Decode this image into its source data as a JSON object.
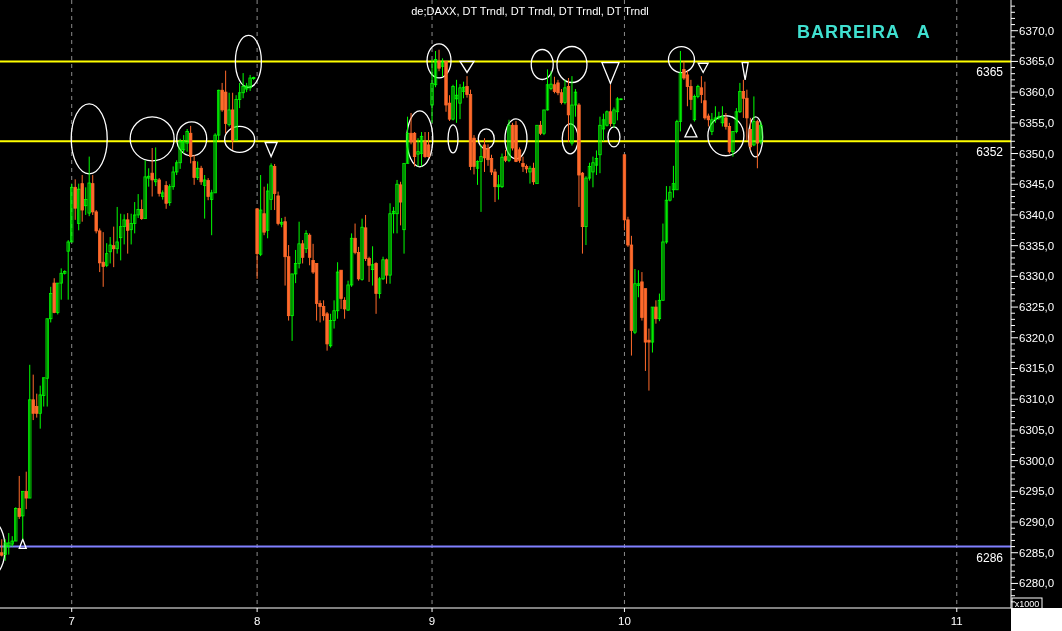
{
  "chart_data": {
    "type": "candlestick",
    "title": "de;DAXX, DT Trndl, DT Trndl, DT Trndl, DT Trndl",
    "annotations": [
      "BARREIRA   A",
      "x1000"
    ],
    "categories": [
      null,
      null,
      null,
      null,
      null,
      null,
      null,
      null,
      null,
      null,
      null,
      null,
      null,
      null,
      null,
      null,
      null,
      null,
      null,
      null,
      "7",
      null,
      null,
      null,
      null,
      null,
      null,
      null,
      null,
      null,
      null,
      null,
      null,
      null,
      null,
      null,
      null,
      null,
      null,
      null,
      null,
      null,
      null,
      null,
      null,
      null,
      null,
      null,
      null,
      null,
      null,
      null,
      null,
      null,
      null,
      null,
      null,
      null,
      null,
      null,
      null,
      null,
      null,
      null,
      null,
      null,
      null,
      null,
      null,
      null,
      null,
      null,
      null,
      "8",
      null,
      null,
      null,
      null,
      null,
      null,
      null,
      null,
      null,
      null,
      null,
      null,
      null,
      null,
      null,
      null,
      null,
      null,
      null,
      null,
      null,
      null,
      null,
      null,
      null,
      null,
      null,
      null,
      null,
      null,
      null,
      null,
      null,
      null,
      null,
      null,
      null,
      null,
      null,
      null,
      null,
      null,
      null,
      null,
      null,
      null,
      null,
      null,
      null,
      "9",
      null,
      null,
      null,
      null,
      null,
      null,
      null,
      null,
      null,
      null,
      null,
      null,
      null,
      null,
      null,
      null,
      null,
      null,
      null,
      null,
      null,
      null,
      null,
      null,
      null,
      null,
      null,
      null,
      null,
      null,
      null,
      null,
      null,
      null,
      null,
      null,
      null,
      null,
      null,
      null,
      null,
      null,
      null,
      null,
      null,
      null,
      null,
      null,
      null,
      null,
      null,
      null,
      null,
      null,
      "10",
      null,
      null,
      null,
      null,
      null,
      null,
      null,
      null,
      null,
      null,
      null,
      null,
      null,
      null,
      null,
      null,
      null,
      null,
      null,
      null,
      null,
      null,
      null,
      null,
      null,
      null,
      null,
      null,
      null,
      null,
      null,
      null,
      null,
      null,
      null,
      null,
      null,
      null,
      null,
      null,
      null,
      null,
      null,
      null,
      null,
      null,
      null,
      null,
      null,
      null,
      null,
      null,
      null,
      null,
      null,
      null,
      null,
      null,
      null,
      null,
      null,
      null,
      null,
      null,
      null,
      null,
      null,
      null,
      null,
      null,
      null,
      null,
      null,
      null,
      null,
      null,
      null,
      null,
      null,
      null,
      null,
      null,
      null,
      null,
      null,
      null,
      null,
      null,
      null,
      null,
      null,
      null,
      null,
      null,
      "11",
      null,
      null,
      null,
      null,
      null,
      null,
      null,
      null,
      null,
      null,
      null,
      null,
      null,
      null,
      null
    ],
    "ohlc": [
      [
        6285.0,
        6287.2,
        6284.4,
        6284.6
      ],
      [
        6284.7,
        6287.2,
        6283.7,
        6286.6
      ],
      [
        6286.0,
        6288.2,
        6284.7,
        6286.6
      ],
      [
        6286.4,
        6287.7,
        6286.0,
        6286.9
      ],
      [
        6286.9,
        6292.4,
        6286.9,
        6292.2
      ],
      [
        6292.2,
        6297.5,
        6290.5,
        6290.9
      ],
      [
        6291.0,
        6295.0,
        6287.2,
        6295.0
      ],
      [
        6295.0,
        6298.2,
        6292.1,
        6293.9
      ],
      [
        6293.9,
        6315.6,
        6293.9,
        6309.9
      ],
      [
        6309.9,
        6314.0,
        6306.6,
        6307.7
      ],
      [
        6308.8,
        6310.9,
        6307.0,
        6307.7
      ],
      [
        6307.7,
        6312.2,
        6305.2,
        6310.7
      ],
      [
        6310.6,
        6313.5,
        6308.8,
        6313.5
      ],
      [
        6313.4,
        6323.1,
        6308.8,
        6323.1
      ],
      [
        6323.1,
        6328.3,
        6322.5,
        6327.2
      ],
      [
        6328.9,
        6329.7,
        6324.0,
        6324.1
      ],
      [
        6324.1,
        6328.9,
        6323.8,
        6328.9
      ],
      [
        6328.9,
        6331.3,
        6326.2,
        6330.5
      ],
      [
        6330.5,
        6331.0,
        6330.3,
        6330.8
      ],
      [
        6334.1,
        6335.9,
        6326.2,
        6335.6
      ],
      [
        6335.6,
        6345.1,
        6335.6,
        6344.5
      ],
      [
        6344.5,
        6345.8,
        6339.2,
        6341.1
      ],
      [
        6338.6,
        6345.1,
        6337.5,
        6344.2
      ],
      [
        6345.1,
        6346.5,
        6338.9,
        6340.8
      ],
      [
        6341.5,
        6344.5,
        6340.0,
        6342.5
      ],
      [
        6340.3,
        6349.5,
        6339.8,
        6345.2
      ],
      [
        6345.1,
        6346.5,
        6340.0,
        6340.5
      ],
      [
        6340.5,
        6340.8,
        6337.0,
        6337.4
      ],
      [
        6337.4,
        6337.8,
        6330.7,
        6332.2
      ],
      [
        6332.3,
        6337.2,
        6328.3,
        6331.6
      ],
      [
        6331.8,
        6335.4,
        6331.5,
        6333.7
      ],
      [
        6334.0,
        6336.4,
        6332.1,
        6335.1
      ],
      [
        6335.0,
        6338.1,
        6331.5,
        6334.5
      ],
      [
        6334.5,
        6341.3,
        6333.7,
        6335.6
      ],
      [
        6336.3,
        6340.2,
        6332.6,
        6338.1
      ],
      [
        6338.1,
        6340.1,
        6335.2,
        6339.2
      ],
      [
        6339.2,
        6340.3,
        6333.7,
        6337.5
      ],
      [
        6337.6,
        6340.2,
        6335.2,
        6338.6
      ],
      [
        6338.6,
        6342.1,
        6337.0,
        6340.0
      ],
      [
        6340.0,
        6343.4,
        6339.5,
        6340.9
      ],
      [
        6340.9,
        6342.5,
        6339.2,
        6339.4
      ],
      [
        6339.4,
        6348.9,
        6339.4,
        6346.2
      ],
      [
        6346.0,
        6347.6,
        6344.6,
        6346.3
      ],
      [
        6346.8,
        6350.9,
        6343.0,
        6345.7
      ],
      [
        6345.4,
        6351.0,
        6344.7,
        6345.8
      ],
      [
        6345.7,
        6346.0,
        6343.0,
        6343.5
      ],
      [
        6343.0,
        6344.0,
        6342.5,
        6343.6
      ],
      [
        6344.8,
        6345.5,
        6341.0,
        6341.9
      ],
      [
        6342.0,
        6345.0,
        6341.5,
        6344.6
      ],
      [
        6344.6,
        6347.9,
        6344.1,
        6347.0
      ],
      [
        6347.0,
        6348.9,
        6346.5,
        6348.5
      ],
      [
        6348.5,
        6352.4,
        6347.5,
        6352.0
      ],
      [
        6350.6,
        6353.0,
        6350.0,
        6352.0
      ],
      [
        6351.7,
        6354.0,
        6350.3,
        6353.6
      ],
      [
        6353.3,
        6354.5,
        6348.4,
        6349.5
      ],
      [
        6348.7,
        6349.8,
        6344.9,
        6346.1
      ],
      [
        6346.1,
        6348.7,
        6345.7,
        6347.6
      ],
      [
        6347.6,
        6348.0,
        6344.9,
        6345.4
      ],
      [
        6344.8,
        6346.5,
        6339.4,
        6345.7
      ],
      [
        6345.6,
        6346.0,
        6342.4,
        6343.0
      ],
      [
        6342.5,
        6344.1,
        6336.7,
        6343.6
      ],
      [
        6343.6,
        6353.3,
        6343.6,
        6353.0
      ],
      [
        6353.0,
        6360.4,
        6352.2,
        6360.3
      ],
      [
        6360.3,
        6361.5,
        6356.8,
        6357.1
      ],
      [
        6360.0,
        6363.5,
        6353.3,
        6354.9
      ],
      [
        6354.7,
        6359.9,
        6354.4,
        6357.1
      ],
      [
        6357.1,
        6359.9,
        6350.6,
        6352.2
      ],
      [
        6352.2,
        6359.5,
        6352.2,
        6358.8
      ],
      [
        6358.8,
        6361.5,
        6357.4,
        6359.9
      ],
      [
        6359.9,
        6363.1,
        6359.0,
        6360.9
      ],
      [
        6360.5,
        6361.5,
        6360.0,
        6361.0
      ],
      [
        6360.7,
        6362.8,
        6360.2,
        6362.3
      ],
      [
        6362.2,
        6362.5,
        6362.0,
        6362.4
      ],
      [
        6341.0,
        6341.0,
        6329.6,
        6333.7
      ],
      [
        6333.6,
        6346.5,
        6333.3,
        6340.8
      ],
      [
        6340.2,
        6344.6,
        6336.7,
        6337.2
      ],
      [
        6337.5,
        6345.1,
        6336.2,
        6343.9
      ],
      [
        6342.5,
        6348.4,
        6340.8,
        6348.0
      ],
      [
        6347.9,
        6348.3,
        6340.8,
        6343.5
      ],
      [
        6343.1,
        6343.8,
        6338.3,
        6338.6
      ],
      [
        6338.5,
        6339.5,
        6338.0,
        6338.8
      ],
      [
        6338.9,
        6339.7,
        6328.5,
        6333.2
      ],
      [
        6333.2,
        6335.1,
        6322.8,
        6323.6
      ],
      [
        6323.6,
        6330.4,
        6319.5,
        6330.4
      ],
      [
        6330.4,
        6334.3,
        6328.9,
        6332.1
      ],
      [
        6332.1,
        6338.9,
        6331.3,
        6335.3
      ],
      [
        6335.3,
        6335.9,
        6332.1,
        6333.1
      ],
      [
        6334.5,
        6337.5,
        6333.8,
        6337.0
      ],
      [
        6336.7,
        6337.0,
        6331.8,
        6333.1
      ],
      [
        6332.6,
        6335.3,
        6330.4,
        6330.7
      ],
      [
        6332.1,
        6332.1,
        6322.8,
        6325.6
      ],
      [
        6325.6,
        6326.1,
        6322.5,
        6325.1
      ],
      [
        6325.1,
        6326.1,
        6322.8,
        6323.6
      ],
      [
        6323.9,
        6324.2,
        6317.9,
        6319.0
      ],
      [
        6318.7,
        6323.9,
        6318.4,
        6322.8
      ],
      [
        6322.8,
        6326.1,
        6321.5,
        6324.4
      ],
      [
        6324.4,
        6332.3,
        6323.1,
        6330.7
      ],
      [
        6331.0,
        6331.0,
        6324.7,
        6326.4
      ],
      [
        6326.1,
        6326.6,
        6323.1,
        6324.7
      ],
      [
        6324.5,
        6329.3,
        6324.4,
        6328.6
      ],
      [
        6328.6,
        6337.0,
        6328.3,
        6336.2
      ],
      [
        6336.2,
        6338.6,
        6333.6,
        6333.9
      ],
      [
        6333.9,
        6334.8,
        6329.3,
        6329.6
      ],
      [
        6329.5,
        6339.4,
        6329.3,
        6338.0
      ],
      [
        6337.9,
        6340.0,
        6332.5,
        6332.9
      ],
      [
        6332.9,
        6333.2,
        6329.1,
        6331.8
      ],
      [
        6331.1,
        6334.9,
        6328.5,
        6331.9
      ],
      [
        6332.1,
        6332.3,
        6323.9,
        6327.2
      ],
      [
        6327.2,
        6329.9,
        6326.4,
        6329.6
      ],
      [
        6329.6,
        6333.2,
        6329.4,
        6332.7
      ],
      [
        6332.7,
        6332.9,
        6328.8,
        6330.2
      ],
      [
        6330.2,
        6341.9,
        6328.8,
        6340.2
      ],
      [
        6340.2,
        6341.3,
        6337.0,
        6340.6
      ],
      [
        6340.2,
        6345.7,
        6337.0,
        6345.0
      ],
      [
        6344.9,
        6345.4,
        6338.3,
        6342.1
      ],
      [
        6337.6,
        6348.4,
        6333.7,
        6348.4
      ],
      [
        6348.4,
        6356.0,
        6348.4,
        6353.3
      ],
      [
        6353.3,
        6356.6,
        6351.5,
        6351.9
      ],
      [
        6353.3,
        6353.5,
        6347.9,
        6349.5
      ],
      [
        6349.9,
        6352.5,
        6347.9,
        6350.3
      ],
      [
        6350.0,
        6353.5,
        6347.9,
        6352.8
      ],
      [
        6351.9,
        6353.5,
        6349.3,
        6349.5
      ],
      [
        6351.4,
        6353.5,
        6349.3,
        6349.5
      ],
      [
        6357.9,
        6365.3,
        6355.0,
        6361.4
      ],
      [
        6361.2,
        6366.7,
        6360.8,
        6365.3
      ],
      [
        6365.0,
        6366.9,
        6363.4,
        6363.9
      ],
      [
        6364.2,
        6365.5,
        6362.5,
        6364.9
      ],
      [
        6365.0,
        6365.0,
        6356.8,
        6357.9
      ],
      [
        6358.2,
        6359.5,
        6355.3,
        6355.6
      ],
      [
        6355.6,
        6361.2,
        6355.4,
        6360.9
      ],
      [
        6358.9,
        6362.0,
        6355.0,
        6359.5
      ],
      [
        6358.2,
        6361.3,
        6355.6,
        6360.7
      ],
      [
        6360.1,
        6361.7,
        6359.0,
        6360.8
      ],
      [
        6360.9,
        6362.6,
        6359.1,
        6359.6
      ],
      [
        6359.6,
        6360.4,
        6347.3,
        6347.9
      ],
      [
        6352.5,
        6353.0,
        6346.6,
        6347.9
      ],
      [
        6347.6,
        6348.9,
        6344.9,
        6348.7
      ],
      [
        6348.7,
        6351.4,
        6340.5,
        6349.5
      ],
      [
        6351.4,
        6352.5,
        6347.0,
        6349.3
      ],
      [
        6350.8,
        6351.5,
        6348.0,
        6349.0
      ],
      [
        6349.2,
        6349.8,
        6346.5,
        6347.0
      ],
      [
        6347.0,
        6347.5,
        6342.1,
        6344.6
      ],
      [
        6344.6,
        6346.5,
        6342.5,
        6344.9
      ],
      [
        6344.6,
        6350.0,
        6344.4,
        6349.4
      ],
      [
        6349.5,
        6350.6,
        6348.6,
        6348.9
      ],
      [
        6348.9,
        6355.5,
        6348.6,
        6354.6
      ],
      [
        6354.6,
        6355.0,
        6350.5,
        6350.9
      ],
      [
        6354.6,
        6355.3,
        6348.6,
        6348.7
      ],
      [
        6350.6,
        6351.0,
        6348.5,
        6348.9
      ],
      [
        6348.4,
        6349.5,
        6347.0,
        6347.9
      ],
      [
        6347.9,
        6348.2,
        6346.8,
        6347.5
      ],
      [
        6347.0,
        6348.0,
        6345.1,
        6347.6
      ],
      [
        6347.6,
        6348.5,
        6344.9,
        6345.4
      ],
      [
        6345.1,
        6354.6,
        6345.1,
        6354.6
      ],
      [
        6354.6,
        6355.3,
        6353.0,
        6353.3
      ],
      [
        6353.3,
        6357.1,
        6353.0,
        6357.1
      ],
      [
        6357.1,
        6363.7,
        6357.0,
        6361.2
      ],
      [
        6360.6,
        6363.4,
        6360.3,
        6361.3
      ],
      [
        6361.2,
        6362.5,
        6359.8,
        6360.1
      ],
      [
        6361.5,
        6362.0,
        6359.5,
        6359.9
      ],
      [
        6359.9,
        6360.5,
        6358.0,
        6358.3
      ],
      [
        6358.3,
        6362.0,
        6358.0,
        6360.7
      ],
      [
        6360.9,
        6362.3,
        6351.9,
        6356.3
      ],
      [
        6351.7,
        6362.6,
        6351.3,
        6357.9
      ],
      [
        6357.9,
        6360.5,
        6356.0,
        6360.0
      ],
      [
        6357.9,
        6358.2,
        6341.3,
        6346.5
      ],
      [
        6346.8,
        6347.0,
        6333.7,
        6338.1
      ],
      [
        6338.1,
        6346.3,
        6335.1,
        6346.0
      ],
      [
        6346.0,
        6348.5,
        6345.6,
        6347.9
      ],
      [
        6347.0,
        6349.5,
        6344.5,
        6348.5
      ],
      [
        6348.1,
        6350.5,
        6346.5,
        6349.2
      ],
      [
        6349.8,
        6356.0,
        6346.8,
        6354.6
      ],
      [
        6354.0,
        6356.5,
        6352.0,
        6355.5
      ],
      [
        6354.6,
        6357.0,
        6354.4,
        6356.8
      ],
      [
        6356.8,
        6361.2,
        6354.4,
        6354.9
      ],
      [
        6354.9,
        6357.5,
        6354.2,
        6357.1
      ],
      [
        6356.8,
        6359.2,
        6355.4,
        6358.9
      ],
      [
        6358.8,
        6359.0,
        6358.7,
        6358.9
      ],
      [
        6349.8,
        6349.8,
        6337.5,
        6339.2
      ],
      [
        6339.2,
        6339.7,
        6334.8,
        6335.1
      ],
      [
        6335.1,
        6336.6,
        6317.1,
        6321.2
      ],
      [
        6320.9,
        6331.2,
        6320.6,
        6328.8
      ],
      [
        6328.5,
        6331.0,
        6326.6,
        6328.8
      ],
      [
        6329.1,
        6330.7,
        6322.8,
        6323.3
      ],
      [
        6328.0,
        6328.0,
        6314.6,
        6319.3
      ],
      [
        6319.6,
        6321.5,
        6311.4,
        6319.3
      ],
      [
        6319.3,
        6325.0,
        6317.6,
        6325.0
      ],
      [
        6325.0,
        6326.1,
        6322.3,
        6323.1
      ],
      [
        6323.1,
        6327.2,
        6322.7,
        6326.1
      ],
      [
        6326.1,
        6338.6,
        6326.1,
        6335.6
      ],
      [
        6335.6,
        6344.7,
        6335.3,
        6342.4
      ],
      [
        6342.4,
        6344.7,
        6342.2,
        6343.7
      ],
      [
        6344.1,
        6348.0,
        6342.8,
        6345.1
      ],
      [
        6344.1,
        6355.5,
        6344.1,
        6355.2
      ],
      [
        6355.2,
        6366.7,
        6353.6,
        6363.1
      ],
      [
        6363.7,
        6365.0,
        6362.0,
        6362.3
      ],
      [
        6362.8,
        6363.5,
        6357.7,
        6360.9
      ],
      [
        6360.9,
        6362.0,
        6357.1,
        6358.8
      ],
      [
        6355.5,
        6359.6,
        6355.2,
        6359.3
      ],
      [
        6359.3,
        6361.2,
        6359.0,
        6360.9
      ],
      [
        6360.7,
        6362.6,
        6358.2,
        6359.6
      ],
      [
        6358.6,
        6361.7,
        6355.5,
        6355.8
      ],
      [
        6356.1,
        6356.5,
        6354.4,
        6355.5
      ],
      [
        6353.6,
        6356.6,
        6353.0,
        6355.5
      ],
      [
        6355.5,
        6357.7,
        6355.0,
        6355.8
      ],
      [
        6355.8,
        6356.8,
        6355.5,
        6356.0
      ],
      [
        6355.0,
        6357.7,
        6354.4,
        6356.0
      ],
      [
        6355.8,
        6356.6,
        6353.9,
        6354.4
      ],
      [
        6354.4,
        6355.0,
        6350.0,
        6350.3
      ],
      [
        6350.3,
        6353.6,
        6349.5,
        6353.6
      ],
      [
        6353.6,
        6357.4,
        6353.3,
        6356.8
      ],
      [
        6356.8,
        6361.5,
        6356.6,
        6360.1
      ],
      [
        6360.1,
        6362.0,
        6355.8,
        6359.0
      ],
      [
        6359.0,
        6360.4,
        6352.2,
        6355.8
      ],
      [
        6353.9,
        6355.8,
        6350.5,
        6351.1
      ],
      [
        6351.4,
        6359.3,
        6351.2,
        6355.2
      ],
      [
        6355.2,
        6355.5,
        6347.6,
        6351.7
      ],
      [
        6351.9,
        6355.2,
        6351.5,
        6354.6
      ],
      null,
      null,
      null,
      null,
      null,
      null,
      null,
      null,
      null,
      null,
      null,
      null,
      null,
      null,
      null,
      null,
      null,
      null,
      null,
      null,
      null,
      null,
      null,
      null,
      null,
      null,
      null,
      null,
      null,
      null,
      null,
      null,
      null,
      null,
      null,
      null,
      null,
      null,
      null,
      null,
      null,
      null,
      null,
      null,
      null,
      null,
      null,
      null,
      null,
      null,
      null,
      null,
      null,
      null,
      null,
      null,
      null,
      null,
      null,
      null,
      null,
      null,
      null,
      null,
      null,
      null,
      null,
      null,
      null,
      null,
      null
    ],
    "colors": [
      "#ff6a2b",
      "#00ff00",
      "#00ff00",
      "#00ff00",
      "#00ff00",
      "#ff6a2b",
      "#00ff00",
      "#ff6a2b",
      "#00ff00",
      "#ff6a2b",
      "#ff6a2b",
      "#00ff00",
      "#00ff00",
      "#00ff00",
      "#00ff00",
      "#ff6a2b",
      "#00ff00",
      "#00ff00",
      "#00ff00",
      "#00ff00",
      "#00ff00",
      "#ff6a2b",
      "#00ff00",
      "#ff6a2b",
      "#00ff00",
      "#00ff00",
      "#ff6a2b",
      "#ff6a2b",
      "#ff6a2b",
      "#ff6a2b",
      "#00ff00",
      "#00ff00",
      "#ff6a2b",
      "#00ff00",
      "#00ff00",
      "#00ff00",
      "#ff6a2b",
      "#00ff00",
      "#00ff00",
      "#00ff00",
      "#ff6a2b",
      "#00ff00",
      "#00ff00",
      "#ff6a2b",
      "#00ff00",
      "#ff6a2b",
      "#00ff00",
      "#ff6a2b",
      "#00ff00",
      "#00ff00",
      "#00ff00",
      "#00ff00",
      "#00ff00",
      "#00ff00",
      "#ff6a2b",
      "#ff6a2b",
      "#00ff00",
      "#ff6a2b",
      "#00ff00",
      "#ff6a2b",
      "#00ff00",
      "#00ff00",
      "#00ff00",
      "#ff6a2b",
      "#ff6a2b",
      "#00ff00",
      "#ff6a2b",
      "#00ff00",
      "#00ff00",
      "#00ff00",
      "#00ff00",
      "#00ff00",
      "#00ff00",
      "#ff6a2b",
      "#00ff00",
      "#ff6a2b",
      "#00ff00",
      "#00ff00",
      "#ff6a2b",
      "#ff6a2b",
      "#00ff00",
      "#ff6a2b",
      "#ff6a2b",
      "#00ff00",
      "#00ff00",
      "#00ff00",
      "#ff6a2b",
      "#00ff00",
      "#ff6a2b",
      "#ff6a2b",
      "#ff6a2b",
      "#ff6a2b",
      "#ff6a2b",
      "#ff6a2b",
      "#00ff00",
      "#00ff00",
      "#00ff00",
      "#ff6a2b",
      "#ff6a2b",
      "#00ff00",
      "#00ff00",
      "#ff6a2b",
      "#ff6a2b",
      "#00ff00",
      "#ff6a2b",
      "#ff6a2b",
      "#00ff00",
      "#ff6a2b",
      "#00ff00",
      "#00ff00",
      "#ff6a2b",
      "#00ff00",
      "#00ff00",
      "#00ff00",
      "#ff6a2b",
      "#00ff00",
      "#00ff00",
      "#ff6a2b",
      "#ff6a2b",
      "#00ff00",
      "#00ff00",
      "#ff6a2b",
      "#ff6a2b",
      "#00ff00",
      "#00ff00",
      "#ff6a2b",
      "#00ff00",
      "#ff6a2b",
      "#ff6a2b",
      "#00ff00",
      "#00ff00",
      "#00ff00",
      "#00ff00",
      "#ff6a2b",
      "#ff6a2b",
      "#ff6a2b",
      "#00ff00",
      "#00ff00",
      "#ff6a2b",
      "#ff6a2b",
      "#ff6a2b",
      "#ff6a2b",
      "#00ff00",
      "#00ff00",
      "#ff6a2b",
      "#00ff00",
      "#ff6a2b",
      "#ff6a2b",
      "#ff6a2b",
      "#ff6a2b",
      "#ff6a2b",
      "#00ff00",
      "#ff6a2b",
      "#00ff00",
      "#ff6a2b",
      "#00ff00",
      "#00ff00",
      "#00ff00",
      "#ff6a2b",
      "#ff6a2b",
      "#ff6a2b",
      "#00ff00",
      "#ff6a2b",
      "#00ff00",
      "#00ff00",
      "#ff6a2b",
      "#ff6a2b",
      "#00ff00",
      "#00ff00",
      "#00ff00",
      "#00ff00",
      "#00ff00",
      "#00ff00",
      "#00ff00",
      "#ff6a2b",
      "#00ff00",
      "#00ff00",
      "#00ff00",
      "#ff6a2b",
      "#ff6a2b",
      "#ff6a2b",
      "#00ff00",
      "#00ff00",
      "#ff6a2b",
      "#ff6a2b",
      "#ff6a2b",
      "#00ff00",
      "#ff6a2b",
      "#00ff00",
      "#00ff00",
      "#00ff00",
      "#00ff00",
      "#00ff00",
      "#00ff00",
      "#00ff00",
      "#ff6a2b",
      "#ff6a2b",
      "#ff6a2b",
      "#00ff00",
      "#00ff00",
      "#ff6a2b",
      "#ff6a2b",
      "#ff6a2b",
      "#00ff00",
      "#00ff00",
      "#00ff00",
      "#00ff00",
      "#ff6a2b",
      "#ff6a2b",
      "#00ff00",
      "#00ff00",
      "#00ff00",
      "#ff6a2b",
      "#ff6a2b",
      "#ff6a2b",
      "#00ff00",
      "#ff6a2b",
      "#00ff00",
      null,
      null,
      null,
      null,
      null,
      null,
      null,
      null,
      null,
      null,
      null,
      null,
      null,
      null,
      null,
      null,
      null,
      null,
      null,
      null,
      null,
      null,
      null,
      null,
      null,
      null,
      null,
      null,
      null,
      null,
      null,
      null,
      null,
      null,
      null,
      null,
      null,
      null,
      null,
      null,
      null,
      null,
      null,
      null,
      null,
      null,
      null,
      null,
      null,
      null,
      null,
      null,
      null,
      null,
      null,
      null,
      null,
      null,
      null,
      null,
      null,
      null,
      null,
      null,
      null,
      null,
      null,
      null,
      null,
      null,
      null
    ],
    "ylim": [
      6276,
      6375
    ],
    "yticks": [
      {
        "value": 6277,
        "label": null
      },
      {
        "value": 6278,
        "label": null
      },
      {
        "value": 6279,
        "label": null
      },
      {
        "value": 6280,
        "label": "6280,0"
      },
      {
        "value": 6281,
        "label": null
      },
      {
        "value": 6282,
        "label": null
      },
      {
        "value": 6283,
        "label": null
      },
      {
        "value": 6284,
        "label": null
      },
      {
        "value": 6285,
        "label": "6285,0"
      },
      {
        "value": 6286,
        "label": null
      },
      {
        "value": 6287,
        "label": null
      },
      {
        "value": 6288,
        "label": null
      },
      {
        "value": 6289,
        "label": null
      },
      {
        "value": 6290,
        "label": "6290,0"
      },
      {
        "value": 6291,
        "label": null
      },
      {
        "value": 6292,
        "label": null
      },
      {
        "value": 6293,
        "label": null
      },
      {
        "value": 6294,
        "label": null
      },
      {
        "value": 6295,
        "label": "6295,0"
      },
      {
        "value": 6296,
        "label": null
      },
      {
        "value": 6297,
        "label": null
      },
      {
        "value": 6298,
        "label": null
      },
      {
        "value": 6299,
        "label": null
      },
      {
        "value": 6300,
        "label": "6300,0"
      },
      {
        "value": 6301,
        "label": null
      },
      {
        "value": 6302,
        "label": null
      },
      {
        "value": 6303,
        "label": null
      },
      {
        "value": 6304,
        "label": null
      },
      {
        "value": 6305,
        "label": "6305,0"
      },
      {
        "value": 6306,
        "label": null
      },
      {
        "value": 6307,
        "label": null
      },
      {
        "value": 6308,
        "label": null
      },
      {
        "value": 6309,
        "label": null
      },
      {
        "value": 6310,
        "label": "6310,0"
      },
      {
        "value": 6311,
        "label": null
      },
      {
        "value": 6312,
        "label": null
      },
      {
        "value": 6313,
        "label": null
      },
      {
        "value": 6314,
        "label": null
      },
      {
        "value": 6315,
        "label": "6315,0"
      },
      {
        "value": 6316,
        "label": null
      },
      {
        "value": 6317,
        "label": null
      },
      {
        "value": 6318,
        "label": null
      },
      {
        "value": 6319,
        "label": null
      },
      {
        "value": 6320,
        "label": "6320,0"
      },
      {
        "value": 6321,
        "label": null
      },
      {
        "value": 6322,
        "label": null
      },
      {
        "value": 6323,
        "label": null
      },
      {
        "value": 6324,
        "label": null
      },
      {
        "value": 6325,
        "label": "6325,0"
      },
      {
        "value": 6326,
        "label": null
      },
      {
        "value": 6327,
        "label": null
      },
      {
        "value": 6328,
        "label": null
      },
      {
        "value": 6329,
        "label": null
      },
      {
        "value": 6330,
        "label": "6330,0"
      },
      {
        "value": 6331,
        "label": null
      },
      {
        "value": 6332,
        "label": null
      },
      {
        "value": 6333,
        "label": null
      },
      {
        "value": 6334,
        "label": null
      },
      {
        "value": 6335,
        "label": "6335,0"
      },
      {
        "value": 6336,
        "label": null
      },
      {
        "value": 6337,
        "label": null
      },
      {
        "value": 6338,
        "label": null
      },
      {
        "value": 6339,
        "label": null
      },
      {
        "value": 6340,
        "label": "6340,0"
      },
      {
        "value": 6341,
        "label": null
      },
      {
        "value": 6342,
        "label": null
      },
      {
        "value": 6343,
        "label": null
      },
      {
        "value": 6344,
        "label": null
      },
      {
        "value": 6345,
        "label": "6345,0"
      },
      {
        "value": 6346,
        "label": null
      },
      {
        "value": 6347,
        "label": null
      },
      {
        "value": 6348,
        "label": null
      },
      {
        "value": 6349,
        "label": null
      },
      {
        "value": 6350,
        "label": "6350,0"
      },
      {
        "value": 6351,
        "label": null
      },
      {
        "value": 6352,
        "label": null
      },
      {
        "value": 6353,
        "label": null
      },
      {
        "value": 6354,
        "label": null
      },
      {
        "value": 6355,
        "label": "6355,0"
      },
      {
        "value": 6356,
        "label": null
      },
      {
        "value": 6357,
        "label": null
      },
      {
        "value": 6358,
        "label": null
      },
      {
        "value": 6359,
        "label": null
      },
      {
        "value": 6360,
        "label": "6360,0"
      },
      {
        "value": 6361,
        "label": null
      },
      {
        "value": 6362,
        "label": null
      },
      {
        "value": 6363,
        "label": null
      },
      {
        "value": 6364,
        "label": null
      },
      {
        "value": 6365,
        "label": "6365,0"
      },
      {
        "value": 6366,
        "label": null
      },
      {
        "value": 6367,
        "label": null
      },
      {
        "value": 6368,
        "label": null
      },
      {
        "value": 6369,
        "label": null
      },
      {
        "value": 6370,
        "label": "6370,0"
      },
      {
        "value": 6371,
        "label": null
      },
      {
        "value": 6372,
        "label": null
      },
      {
        "value": 6373,
        "label": null
      },
      {
        "value": 6374,
        "label": null
      }
    ],
    "grid": "x",
    "ref_lines": [
      {
        "axis": "y",
        "value": 6365,
        "label": "6365",
        "color": "#ffff00"
      },
      {
        "axis": "y",
        "value": 6352,
        "label": "6352",
        "color": "#ffff00"
      },
      {
        "axis": "y",
        "value": 6286,
        "label": "6286",
        "color": "#8080ff"
      }
    ]
  }
}
